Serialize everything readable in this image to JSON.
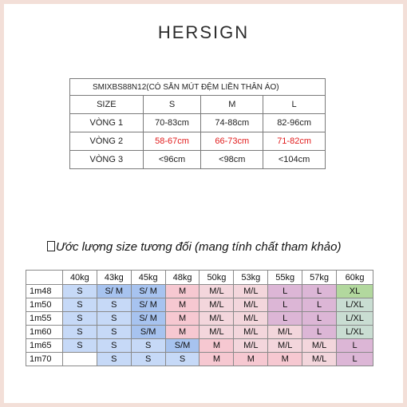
{
  "brand": "HERSIGN",
  "table1": {
    "product_code": "SMIXBS88N12(CÓ SẴN MÚT ĐỆM LIỀN THÂN ÁO)",
    "header": [
      "SIZE",
      "S",
      "M",
      "L"
    ],
    "rows": [
      {
        "label": "VÒNG 1",
        "values": [
          "70-83cm",
          "74-88cm",
          "82-96cm"
        ],
        "color": "#222222"
      },
      {
        "label": "VÒNG 2",
        "values": [
          "58-67cm",
          "66-73cm",
          "71-82cm"
        ],
        "color": "#e11b1b"
      },
      {
        "label": "VÒNG 3",
        "values": [
          "<96cm",
          "<98cm",
          "<104cm"
        ],
        "color": "#222222"
      }
    ]
  },
  "note": "Ước lượng size tương đối (mang tính chất tham khảo)",
  "table2": {
    "weights": [
      "40kg",
      "43kg",
      "45kg",
      "48kg",
      "50kg",
      "53kg",
      "55kg",
      "57kg",
      "60kg"
    ],
    "rows": [
      {
        "height": "1m48",
        "sizes": [
          "S",
          "S/ M",
          "S/ M",
          "M",
          "M/L",
          "M/L",
          "L",
          "L",
          "XL"
        ]
      },
      {
        "height": "1m50",
        "sizes": [
          "S",
          "S",
          "S/ M",
          "M",
          "M/L",
          "M/L",
          "L",
          "L",
          "L/XL"
        ]
      },
      {
        "height": "1m55",
        "sizes": [
          "S",
          "S",
          "S/ M",
          "M",
          "M/L",
          "M/L",
          "L",
          "L",
          "L/XL"
        ]
      },
      {
        "height": "1m60",
        "sizes": [
          "S",
          "S",
          "S/M",
          "M",
          "M/L",
          "M/L",
          "M/L",
          "L",
          "L/XL"
        ]
      },
      {
        "height": "1m65",
        "sizes": [
          "S",
          "S",
          "S",
          "S/M",
          "M",
          "M/L",
          "M/L",
          "M/L",
          "L"
        ]
      },
      {
        "height": "1m70",
        "sizes": [
          "",
          "S",
          "S",
          "S",
          "M",
          "M",
          "M",
          "M/L",
          "L"
        ]
      }
    ],
    "size_colors": {
      "S": "#c6d9f7",
      "S/M": "#a7c3ef",
      "M": "#f6c8d1",
      "M/L": "#f3d6dc",
      "L": "#dcb6d6",
      "XL": "#b2d89e",
      "L/XL": "#c9ddd2"
    }
  }
}
